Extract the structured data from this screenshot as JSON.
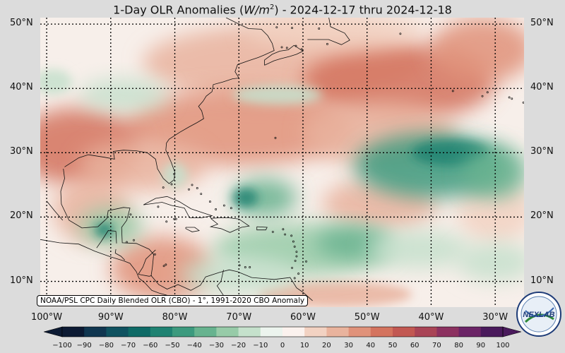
{
  "title_prefix": "1-Day OLR Anomalies (",
  "title_unit_base": "W/m",
  "title_unit_exp": "2",
  "title_suffix": ") - 2024-12-17 thru 2024-12-18",
  "source_note": "NOAA/PSL CPC Daily Blended OLR (CBO) - 1°, 1991-2020 CBO Anomaly",
  "logo_text": "NEXLAB",
  "lat_labels": [
    "50°N",
    "40°N",
    "30°N",
    "20°N",
    "10°N"
  ],
  "lon_labels": [
    "100°W",
    "90°W",
    "80°W",
    "70°W",
    "60°W",
    "50°W",
    "40°W",
    "30°W"
  ],
  "colorbar": {
    "ticks": [
      "−100",
      "−90",
      "−80",
      "−70",
      "−60",
      "−50",
      "−40",
      "−30",
      "−20",
      "−10",
      "0",
      "10",
      "20",
      "30",
      "40",
      "50",
      "60",
      "70",
      "80",
      "90",
      "100"
    ],
    "colors": [
      "#0c1a33",
      "#103650",
      "#0f5260",
      "#0e6a66",
      "#1f8272",
      "#3c9a7e",
      "#67b38f",
      "#97cba8",
      "#c5e1cc",
      "#ecf4ee",
      "#fbf2ee",
      "#f2d2c2",
      "#e9b39d",
      "#e0927a",
      "#d4735e",
      "#c25852",
      "#a94456",
      "#8c3160",
      "#6b2466",
      "#4a1a5c"
    ]
  },
  "map": {
    "extent": {
      "lon_west": -101,
      "lon_east": -25.5,
      "lat_south": 6,
      "lat_north": 51
    },
    "background_color": "#f7efea",
    "anomaly_patches": [
      {
        "lon": -63,
        "lat": 44,
        "rx": 22,
        "ry": 6,
        "value": 25
      },
      {
        "lon": -45,
        "lat": 41,
        "rx": 15,
        "ry": 6,
        "value": 45
      },
      {
        "lon": -32,
        "lat": 46,
        "rx": 8,
        "ry": 5,
        "value": 35
      },
      {
        "lon": -55,
        "lat": 49,
        "rx": 14,
        "ry": 3,
        "value": 15
      },
      {
        "lon": -70,
        "lat": 34,
        "rx": 18,
        "ry": 6,
        "value": 35
      },
      {
        "lon": -48,
        "lat": 33,
        "rx": 12,
        "ry": 5,
        "value": 25
      },
      {
        "lon": -95,
        "lat": 31,
        "rx": 10,
        "ry": 6,
        "value": 40
      },
      {
        "lon": -85,
        "lat": 28,
        "rx": 10,
        "ry": 4,
        "value": 25
      },
      {
        "lon": -93,
        "lat": 21,
        "rx": 6,
        "ry": 5,
        "value": 20
      },
      {
        "lon": -48,
        "lat": 22,
        "rx": 9,
        "ry": 4,
        "value": 20
      },
      {
        "lon": -30,
        "lat": 21,
        "rx": 6,
        "ry": 5,
        "value": 15
      },
      {
        "lon": -82,
        "lat": 12,
        "rx": 8,
        "ry": 5,
        "value": 30
      },
      {
        "lon": -55,
        "lat": 8,
        "rx": 12,
        "ry": 2,
        "value": 20
      },
      {
        "lon": -88,
        "lat": 39,
        "rx": 7,
        "ry": 2.5,
        "value": -20
      },
      {
        "lon": -64,
        "lat": 39,
        "rx": 7,
        "ry": 1.5,
        "value": -15
      },
      {
        "lon": -99,
        "lat": 41,
        "rx": 3,
        "ry": 2,
        "value": -15
      },
      {
        "lon": -80,
        "lat": 26.5,
        "rx": 2,
        "ry": 2,
        "value": -20
      },
      {
        "lon": -40,
        "lat": 28,
        "rx": 12,
        "ry": 5,
        "value": -45
      },
      {
        "lon": -37,
        "lat": 30,
        "rx": 6,
        "ry": 2,
        "value": -60
      },
      {
        "lon": -30,
        "lat": 27,
        "rx": 5,
        "ry": 4,
        "value": -35
      },
      {
        "lon": -66,
        "lat": 23,
        "rx": 5,
        "ry": 3,
        "value": -35
      },
      {
        "lon": -69,
        "lat": 23,
        "rx": 2,
        "ry": 1.5,
        "value": -55
      },
      {
        "lon": -90,
        "lat": 18.5,
        "rx": 5,
        "ry": 3,
        "value": -30
      },
      {
        "lon": -91,
        "lat": 18,
        "rx": 1.5,
        "ry": 1.2,
        "value": -60
      },
      {
        "lon": -60,
        "lat": 15,
        "rx": 14,
        "ry": 4,
        "value": -25
      },
      {
        "lon": -52,
        "lat": 16,
        "rx": 6,
        "ry": 2.5,
        "value": -35
      },
      {
        "lon": -42,
        "lat": 15,
        "rx": 8,
        "ry": 3,
        "value": -20
      },
      {
        "lon": -70,
        "lat": 11,
        "rx": 9,
        "ry": 3,
        "value": -20
      },
      {
        "lon": -30,
        "lat": 13,
        "rx": 6,
        "ry": 3,
        "value": -15
      }
    ],
    "coastlines": [
      [
        [
          -97.4,
          27.5
        ],
        [
          -97.2,
          26
        ],
        [
          -97.8,
          24
        ],
        [
          -97.7,
          22
        ],
        [
          -96.5,
          19.5
        ],
        [
          -94.5,
          18.3
        ],
        [
          -92,
          18.5
        ],
        [
          -90.6,
          19.8
        ],
        [
          -90.4,
          21
        ],
        [
          -88,
          21.5
        ],
        [
          -87,
          21.4
        ],
        [
          -87.5,
          19.5
        ],
        [
          -88.3,
          18.4
        ],
        [
          -88.2,
          16
        ],
        [
          -86,
          15.9
        ],
        [
          -84,
          15
        ],
        [
          -83.3,
          14.2
        ],
        [
          -83.5,
          12.2
        ],
        [
          -83.7,
          10.9
        ],
        [
          -82.5,
          9.5
        ],
        [
          -81.2,
          8.8
        ],
        [
          -79.5,
          9.5
        ],
        [
          -77.5,
          8.6
        ],
        [
          -76,
          9.4
        ],
        [
          -75.2,
          10.7
        ],
        [
          -73,
          11.4
        ],
        [
          -71.5,
          11.8
        ],
        [
          -70.2,
          11.5
        ],
        [
          -68,
          10.6
        ],
        [
          -64.5,
          10.3
        ],
        [
          -62,
          10.6
        ],
        [
          -61,
          9
        ],
        [
          -60,
          8.3
        ],
        [
          -58.5,
          7
        ]
      ],
      [
        [
          -97.2,
          27.8
        ],
        [
          -95,
          29.2
        ],
        [
          -93.5,
          29.7
        ],
        [
          -91,
          29.3
        ],
        [
          -89.4,
          29
        ],
        [
          -89.6,
          30.2
        ],
        [
          -88,
          30.4
        ],
        [
          -86,
          30.3
        ],
        [
          -84.3,
          30
        ],
        [
          -83,
          29
        ],
        [
          -82.7,
          27.5
        ],
        [
          -81.8,
          26
        ],
        [
          -80.9,
          25.2
        ],
        [
          -80.1,
          25.8
        ],
        [
          -80,
          27
        ],
        [
          -80.6,
          28.6
        ],
        [
          -81.4,
          30.4
        ],
        [
          -81.3,
          31.5
        ],
        [
          -80.9,
          32.1
        ],
        [
          -79.2,
          33.2
        ],
        [
          -77.8,
          34
        ],
        [
          -76.5,
          34.7
        ],
        [
          -75.5,
          35.3
        ],
        [
          -75.8,
          36.5
        ],
        [
          -76.3,
          37.2
        ],
        [
          -75.6,
          38
        ],
        [
          -75.1,
          38.8
        ],
        [
          -74.2,
          39.5
        ],
        [
          -74,
          40.6
        ],
        [
          -72.5,
          41
        ],
        [
          -71,
          41.5
        ],
        [
          -70,
          41.6
        ],
        [
          -70.6,
          42.6
        ],
        [
          -70.2,
          43.7
        ],
        [
          -68.5,
          44.3
        ],
        [
          -67,
          44.8
        ],
        [
          -66,
          45.2
        ],
        [
          -64.5,
          45.9
        ],
        [
          -64.8,
          47
        ],
        [
          -65.5,
          48.2
        ],
        [
          -66.5,
          49.2
        ],
        [
          -68.5,
          49.3
        ],
        [
          -70,
          50
        ],
        [
          -72,
          51
        ]
      ],
      [
        [
          -66,
          43.6
        ],
        [
          -64.5,
          44.3
        ],
        [
          -63.5,
          44.6
        ],
        [
          -62,
          45
        ],
        [
          -61,
          45.3
        ],
        [
          -60,
          45.8
        ],
        [
          -61.4,
          46.7
        ],
        [
          -62.3,
          46
        ],
        [
          -63.6,
          45.8
        ],
        [
          -64.8,
          45.3
        ],
        [
          -66,
          44.4
        ],
        [
          -66,
          43.6
        ]
      ],
      [
        [
          -59.3,
          47.6
        ],
        [
          -58,
          47.6
        ],
        [
          -56,
          47.6
        ],
        [
          -54,
          46.8
        ],
        [
          -52.7,
          47.5
        ],
        [
          -53.5,
          48.6
        ],
        [
          -55.7,
          49.6
        ],
        [
          -56,
          51.2
        ],
        [
          -55.5,
          51.7
        ]
      ],
      [
        [
          -84.9,
          21.9
        ],
        [
          -83,
          22.9
        ],
        [
          -81.2,
          23.2
        ],
        [
          -79.3,
          22.4
        ],
        [
          -77.5,
          21.3
        ],
        [
          -75.7,
          20.7
        ],
        [
          -74.2,
          20.2
        ],
        [
          -75.8,
          19.9
        ],
        [
          -77.7,
          19.9
        ],
        [
          -78.5,
          21.4
        ],
        [
          -80.5,
          21.8
        ],
        [
          -82,
          22.3
        ],
        [
          -84.9,
          21.9
        ]
      ],
      [
        [
          -74.4,
          19.8
        ],
        [
          -72.7,
          19.9
        ],
        [
          -71.7,
          19.9
        ],
        [
          -70,
          19.7
        ],
        [
          -68.4,
          18.6
        ],
        [
          -69.6,
          18.4
        ],
        [
          -71.4,
          17.6
        ],
        [
          -72.8,
          18.2
        ],
        [
          -74.4,
          18.5
        ],
        [
          -73.3,
          18.9
        ],
        [
          -74.4,
          19.8
        ]
      ],
      [
        [
          -78.3,
          18.4
        ],
        [
          -76.9,
          18.4
        ],
        [
          -76.2,
          17.9
        ],
        [
          -77.3,
          17.7
        ],
        [
          -78.3,
          18.2
        ],
        [
          -78.3,
          18.4
        ]
      ],
      [
        [
          -67.2,
          18.5
        ],
        [
          -65.6,
          18.4
        ],
        [
          -65.8,
          18
        ],
        [
          -67.2,
          18
        ],
        [
          -67.2,
          18.5
        ]
      ],
      [
        [
          -100,
          22.5
        ],
        [
          -98.8,
          21
        ],
        [
          -97.5,
          19.5
        ]
      ],
      [
        [
          -101,
          16.5
        ],
        [
          -98,
          16
        ],
        [
          -95,
          15.8
        ],
        [
          -92.5,
          14.7
        ],
        [
          -90,
          13.8
        ],
        [
          -88,
          13.2
        ],
        [
          -87,
          12.8
        ],
        [
          -86,
          11.5
        ],
        [
          -85.6,
          10.5
        ],
        [
          -84.7,
          9.8
        ],
        [
          -83.6,
          8.6
        ],
        [
          -82.5,
          8.2
        ],
        [
          -80,
          7.5
        ],
        [
          -78.5,
          7.5
        ]
      ],
      [
        [
          -89.2,
          17.8
        ],
        [
          -89.1,
          15.9
        ]
      ],
      [
        [
          -92.2,
          15.2
        ],
        [
          -91.5,
          16.2
        ],
        [
          -90.4,
          17.9
        ],
        [
          -89.2,
          17.8
        ]
      ],
      [
        [
          -87.8,
          13.3
        ],
        [
          -88.4,
          13.9
        ],
        [
          -89.3,
          14.4
        ],
        [
          -89.2,
          15
        ]
      ],
      [
        [
          -85.7,
          11.1
        ],
        [
          -84,
          10.8
        ],
        [
          -83.6,
          10.9
        ]
      ],
      [
        [
          -83,
          14.9
        ],
        [
          -84.5,
          13.5
        ],
        [
          -85,
          12.2
        ],
        [
          -85.7,
          11.1
        ]
      ],
      [
        [
          -72.4,
          11.8
        ],
        [
          -72.8,
          10
        ],
        [
          -73.4,
          9.3
        ],
        [
          -72.2,
          7.5
        ],
        [
          -70,
          7
        ]
      ]
    ],
    "islands": [
      [
        -77.3,
        25
      ],
      [
        -77.8,
        24.3
      ],
      [
        -76.5,
        24.5
      ],
      [
        -75.9,
        23.6
      ],
      [
        -74.5,
        22.4
      ],
      [
        -73.6,
        21.2
      ],
      [
        -72.3,
        21.8
      ],
      [
        -71.2,
        21.4
      ],
      [
        -64.7,
        17.7
      ],
      [
        -63.1,
        18.1
      ],
      [
        -62.8,
        17.3
      ],
      [
        -61.8,
        17.1
      ],
      [
        -61.5,
        16.2
      ],
      [
        -61.3,
        15.4
      ],
      [
        -61,
        14.6
      ],
      [
        -61,
        13.9
      ],
      [
        -61.2,
        13.2
      ],
      [
        -59.5,
        13.1
      ],
      [
        -61.7,
        12.1
      ],
      [
        -61.3,
        10.5
      ],
      [
        -60.7,
        11.2
      ],
      [
        -69.9,
        12.5
      ],
      [
        -69,
        12.2
      ],
      [
        -68.3,
        12.2
      ],
      [
        -64.3,
        32.3
      ],
      [
        -80.1,
        26.7
      ],
      [
        -80.5,
        25.1
      ],
      [
        -81.8,
        24.6
      ],
      [
        -82.6,
        21.6
      ],
      [
        -81.3,
        19.3
      ],
      [
        -80.1,
        19.7
      ],
      [
        -79.8,
        19.7
      ],
      [
        -86.9,
        20.4
      ],
      [
        -87.5,
        16.1
      ],
      [
        -86.4,
        16.4
      ],
      [
        -83.1,
        14.2
      ],
      [
        -81.4,
        12.6
      ],
      [
        -81.7,
        12.4
      ],
      [
        -60.2,
        46.1
      ],
      [
        -61.1,
        46.6
      ],
      [
        -63.3,
        46.4
      ],
      [
        -62.5,
        46.3
      ],
      [
        -56.2,
        46.9
      ],
      [
        -57.5,
        49.3
      ],
      [
        -64.1,
        49.5
      ],
      [
        -61.7,
        49.4
      ],
      [
        -44.8,
        48.5
      ],
      [
        -36.6,
        39.6
      ],
      [
        -32,
        38.8
      ],
      [
        -31.2,
        39.4
      ],
      [
        -27.8,
        38.6
      ],
      [
        -27.4,
        38.4
      ],
      [
        -25.6,
        37.8
      ]
    ]
  }
}
